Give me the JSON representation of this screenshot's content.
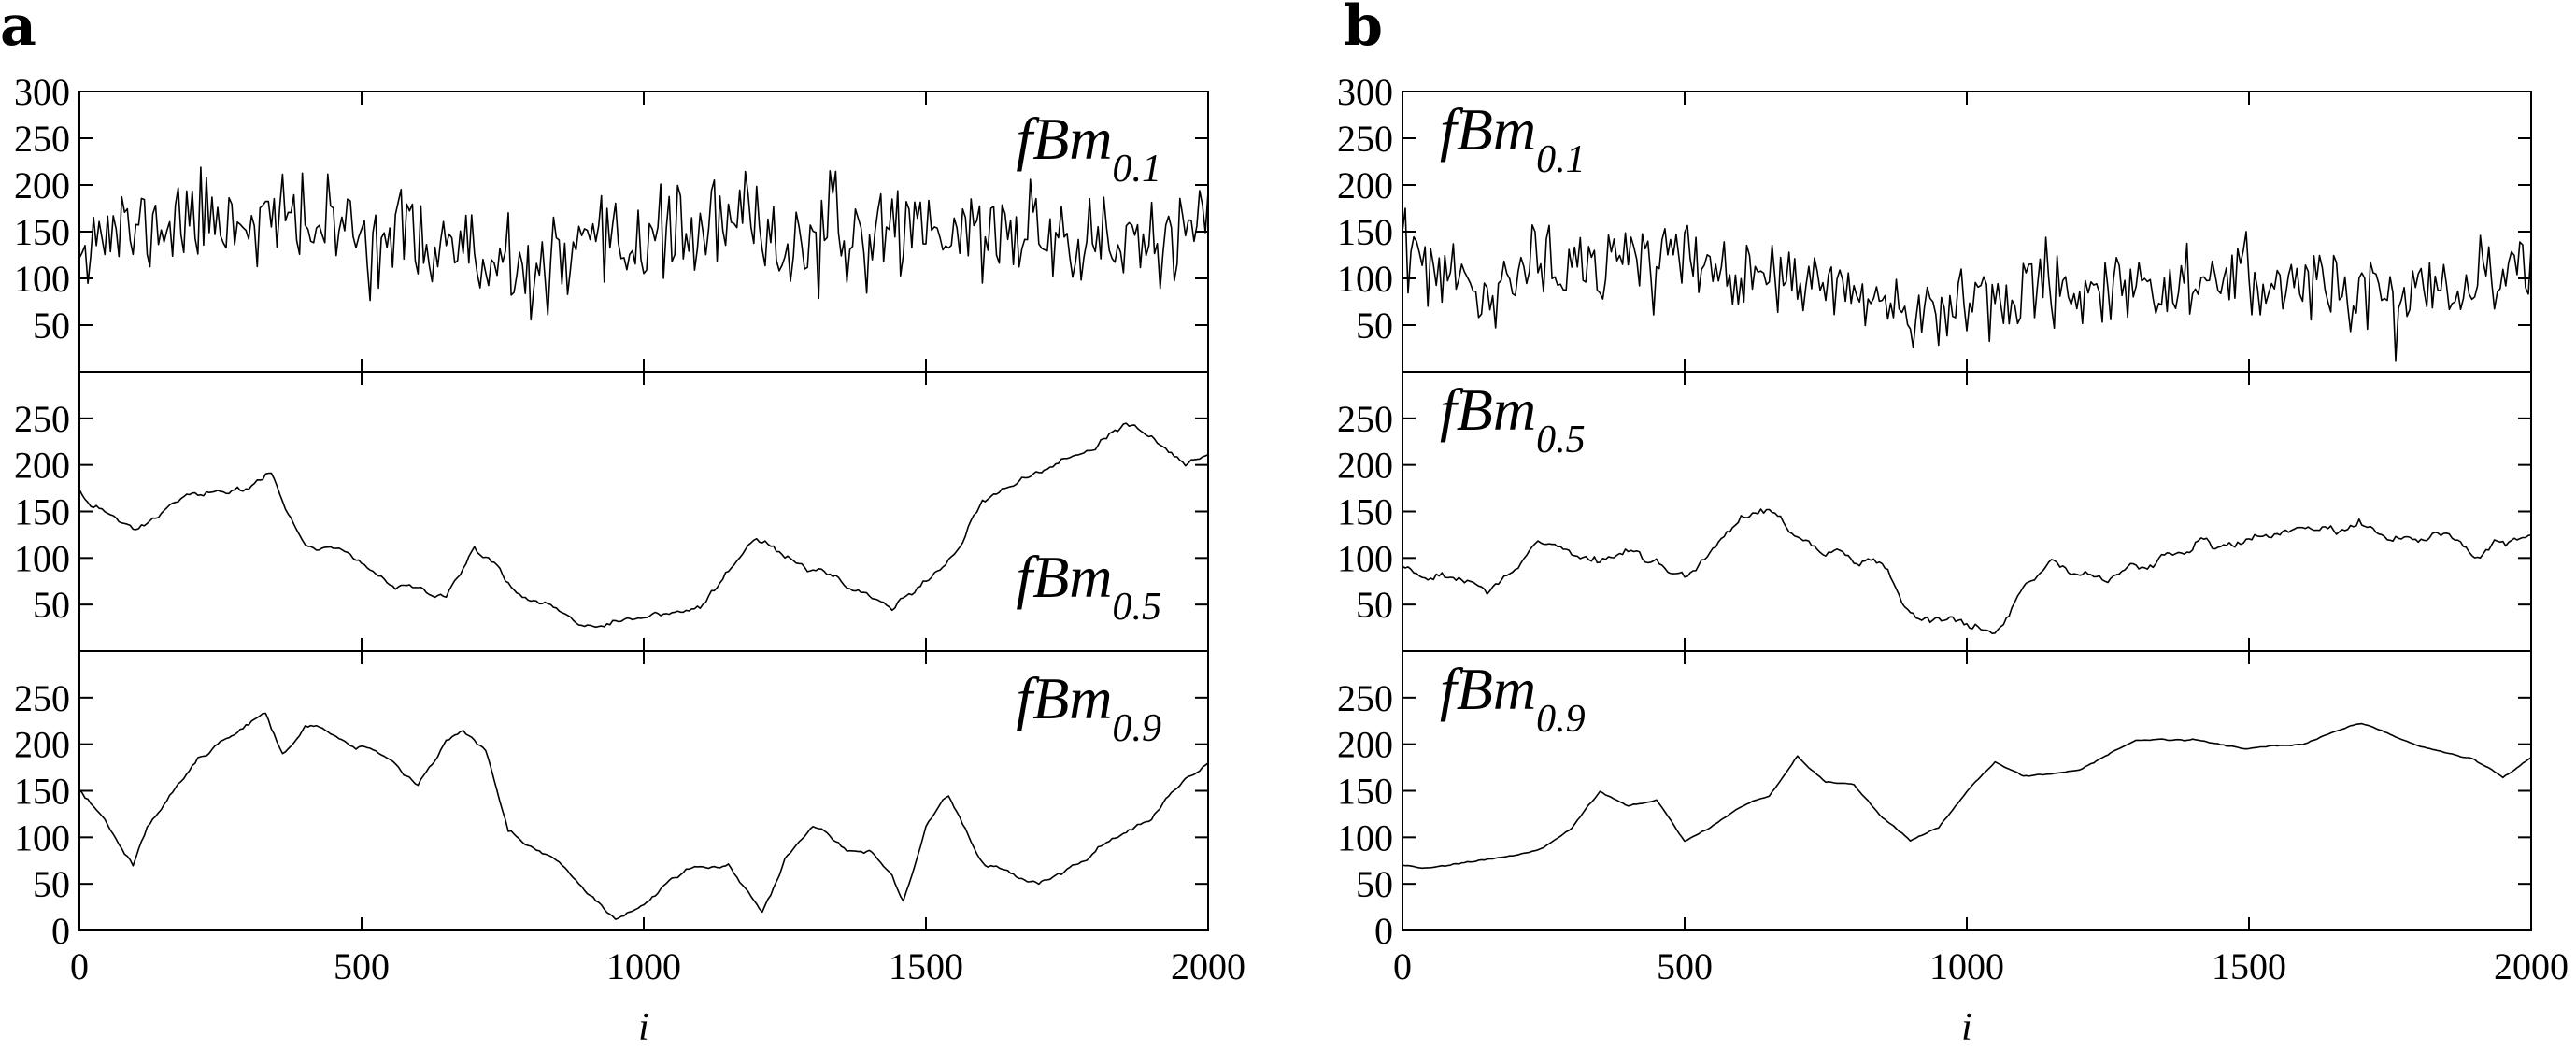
{
  "panels": [
    {
      "letter": "a",
      "xlabel": "i",
      "xlim": [
        0,
        2000
      ],
      "xticks": [
        0,
        500,
        1000,
        1500,
        2000
      ],
      "subplots": [
        {
          "label_main": "fBm",
          "label_sub": "0.1",
          "label_anchor": "top-right",
          "ylim": [
            0,
            300
          ],
          "yticks": [
            50,
            100,
            150,
            200,
            250,
            300
          ],
          "hurst": 0.1,
          "seed": 11,
          "sample_step": 5,
          "keypoints": [
            [
              0,
              150
            ],
            [
              100,
              150
            ],
            [
              200,
              165
            ],
            [
              300,
              165
            ],
            [
              400,
              158
            ],
            [
              500,
              150
            ],
            [
              600,
              140
            ],
            [
              680,
              135
            ],
            [
              720,
              100
            ],
            [
              800,
              105
            ],
            [
              900,
              120
            ],
            [
              1000,
              145
            ],
            [
              1100,
              150
            ],
            [
              1200,
              160
            ],
            [
              1260,
              130
            ],
            [
              1300,
              145
            ],
            [
              1400,
              140
            ],
            [
              1450,
              165
            ],
            [
              1550,
              150
            ],
            [
              1700,
              150
            ],
            [
              1800,
              135
            ],
            [
              1900,
              140
            ],
            [
              2000,
              140
            ]
          ],
          "noise_amplitude": 55,
          "y_clip": [
            20,
            250
          ]
        },
        {
          "label_main": "fBm",
          "label_sub": "0.5",
          "label_anchor": "bottom-right",
          "ylim": [
            0,
            300
          ],
          "yticks": [
            50,
            100,
            150,
            200,
            250
          ],
          "hurst": 0.5,
          "seed": 23,
          "sample_step": 5,
          "keypoints": [
            [
              0,
              170
            ],
            [
              20,
              150
            ],
            [
              100,
              130
            ],
            [
              200,
              165
            ],
            [
              250,
              170
            ],
            [
              300,
              170
            ],
            [
              340,
              190
            ],
            [
              360,
              160
            ],
            [
              400,
              110
            ],
            [
              500,
              95
            ],
            [
              550,
              70
            ],
            [
              650,
              65
            ],
            [
              700,
              110
            ],
            [
              750,
              85
            ],
            [
              800,
              55
            ],
            [
              900,
              35
            ],
            [
              1000,
              45
            ],
            [
              1100,
              45
            ],
            [
              1150,
              70
            ],
            [
              1200,
              115
            ],
            [
              1300,
              90
            ],
            [
              1400,
              50
            ],
            [
              1440,
              35
            ],
            [
              1500,
              80
            ],
            [
              1560,
              110
            ],
            [
              1600,
              160
            ],
            [
              1700,
              185
            ],
            [
              1800,
              210
            ],
            [
              1850,
              235
            ],
            [
              1900,
              225
            ],
            [
              1960,
              200
            ],
            [
              2000,
              210
            ]
          ],
          "noise_amplitude": 10,
          "y_clip": [
            5,
            250
          ]
        },
        {
          "label_main": "fBm",
          "label_sub": "0.9",
          "label_anchor": "top-right",
          "ylim": [
            0,
            300
          ],
          "yticks": [
            0,
            50,
            100,
            150,
            200,
            250
          ],
          "hurst": 0.9,
          "seed": 37,
          "sample_step": 5,
          "keypoints": [
            [
              0,
              150
            ],
            [
              50,
              115
            ],
            [
              95,
              75
            ],
            [
              120,
              120
            ],
            [
              200,
              180
            ],
            [
              250,
              205
            ],
            [
              300,
              225
            ],
            [
              330,
              240
            ],
            [
              360,
              200
            ],
            [
              400,
              230
            ],
            [
              450,
              215
            ],
            [
              550,
              185
            ],
            [
              600,
              160
            ],
            [
              650,
              210
            ],
            [
              680,
              225
            ],
            [
              720,
              195
            ],
            [
              760,
              115
            ],
            [
              850,
              80
            ],
            [
              900,
              45
            ],
            [
              950,
              20
            ],
            [
              1000,
              30
            ],
            [
              1050,
              60
            ],
            [
              1150,
              70
            ],
            [
              1210,
              15
            ],
            [
              1250,
              75
            ],
            [
              1300,
              115
            ],
            [
              1350,
              95
            ],
            [
              1400,
              85
            ],
            [
              1440,
              60
            ],
            [
              1460,
              30
            ],
            [
              1500,
              110
            ],
            [
              1540,
              150
            ],
            [
              1600,
              80
            ],
            [
              1700,
              50
            ],
            [
              1800,
              85
            ],
            [
              1900,
              120
            ],
            [
              1960,
              160
            ],
            [
              2000,
              180
            ]
          ],
          "noise_amplitude": 12,
          "y_clip": [
            0,
            245
          ]
        }
      ]
    },
    {
      "letter": "b",
      "xlabel": "i",
      "xlim": [
        0,
        2000
      ],
      "xticks": [
        0,
        500,
        1000,
        1500,
        2000
      ],
      "subplots": [
        {
          "label_main": "fBm",
          "label_sub": "0.1",
          "label_anchor": "top-left",
          "ylim": [
            0,
            300
          ],
          "yticks": [
            50,
            100,
            150,
            200,
            250,
            300
          ],
          "hurst": 0.1,
          "seed": 53,
          "sample_step": 5,
          "keypoints": [
            [
              0,
              130
            ],
            [
              80,
              100
            ],
            [
              150,
              70
            ],
            [
              200,
              110
            ],
            [
              300,
              115
            ],
            [
              450,
              120
            ],
            [
              550,
              110
            ],
            [
              650,
              100
            ],
            [
              800,
              85
            ],
            [
              900,
              60
            ],
            [
              1000,
              85
            ],
            [
              1100,
              90
            ],
            [
              1300,
              95
            ],
            [
              1400,
              90
            ],
            [
              1500,
              100
            ],
            [
              1600,
              95
            ],
            [
              1700,
              90
            ],
            [
              1800,
              75
            ],
            [
              1900,
              80
            ],
            [
              2000,
              120
            ]
          ],
          "noise_amplitude": 45,
          "y_clip": [
            0,
            175
          ]
        },
        {
          "label_main": "fBm",
          "label_sub": "0.5",
          "label_anchor": "top-left",
          "ylim": [
            0,
            300
          ],
          "yticks": [
            50,
            100,
            150,
            200,
            250
          ],
          "hurst": 0.5,
          "seed": 71,
          "sample_step": 5,
          "keypoints": [
            [
              0,
              90
            ],
            [
              100,
              80
            ],
            [
              150,
              65
            ],
            [
              250,
              110
            ],
            [
              350,
              95
            ],
            [
              450,
              105
            ],
            [
              500,
              80
            ],
            [
              550,
              100
            ],
            [
              600,
              145
            ],
            [
              650,
              155
            ],
            [
              700,
              130
            ],
            [
              800,
              90
            ],
            [
              850,
              80
            ],
            [
              900,
              40
            ],
            [
              950,
              45
            ],
            [
              1000,
              35
            ],
            [
              1050,
              20
            ],
            [
              1100,
              70
            ],
            [
              1150,
              90
            ],
            [
              1250,
              75
            ],
            [
              1300,
              90
            ],
            [
              1400,
              115
            ],
            [
              1500,
              125
            ],
            [
              1600,
              140
            ],
            [
              1700,
              150
            ],
            [
              1750,
              125
            ],
            [
              1850,
              130
            ],
            [
              1900,
              105
            ],
            [
              2000,
              125
            ]
          ],
          "noise_amplitude": 14,
          "y_clip": [
            0,
            190
          ]
        },
        {
          "label_main": "fBm",
          "label_sub": "0.9",
          "label_anchor": "top-left",
          "ylim": [
            0,
            300
          ],
          "yticks": [
            0,
            50,
            100,
            150,
            200,
            250
          ],
          "hurst": 0.9,
          "seed": 89,
          "sample_step": 5,
          "keypoints": [
            [
              0,
              70
            ],
            [
              50,
              65
            ],
            [
              100,
              70
            ],
            [
              200,
              80
            ],
            [
              250,
              90
            ],
            [
              300,
              110
            ],
            [
              350,
              150
            ],
            [
              400,
              135
            ],
            [
              450,
              140
            ],
            [
              500,
              95
            ],
            [
              550,
              110
            ],
            [
              600,
              130
            ],
            [
              650,
              140
            ],
            [
              700,
              185
            ],
            [
              750,
              160
            ],
            [
              800,
              155
            ],
            [
              850,
              120
            ],
            [
              900,
              95
            ],
            [
              950,
              110
            ],
            [
              1000,
              150
            ],
            [
              1050,
              180
            ],
            [
              1100,
              165
            ],
            [
              1200,
              175
            ],
            [
              1300,
              205
            ],
            [
              1400,
              205
            ],
            [
              1500,
              195
            ],
            [
              1600,
              200
            ],
            [
              1700,
              225
            ],
            [
              1800,
              200
            ],
            [
              1900,
              185
            ],
            [
              1950,
              165
            ],
            [
              2000,
              185
            ]
          ],
          "noise_amplitude": 4,
          "y_clip": [
            55,
            235
          ]
        }
      ]
    }
  ],
  "chart_data": [
    {
      "type": "line",
      "panel": "a",
      "xlabel": "i",
      "xlim": [
        0,
        2000
      ],
      "series": [
        {
          "name": "fBm0.1",
          "ylim": [
            0,
            300
          ],
          "mean_level": 145,
          "approx_range": [
            20,
            250
          ]
        },
        {
          "name": "fBm0.5",
          "ylim": [
            0,
            300
          ],
          "approx_range": [
            10,
            245
          ]
        },
        {
          "name": "fBm0.9",
          "ylim": [
            0,
            300
          ],
          "approx_range": [
            0,
            245
          ]
        }
      ]
    },
    {
      "type": "line",
      "panel": "b",
      "xlabel": "i",
      "xlim": [
        0,
        2000
      ],
      "series": [
        {
          "name": "fBm0.1",
          "ylim": [
            0,
            300
          ],
          "mean_level": 95,
          "approx_range": [
            0,
            175
          ]
        },
        {
          "name": "fBm0.5",
          "ylim": [
            0,
            300
          ],
          "approx_range": [
            0,
            190
          ]
        },
        {
          "name": "fBm0.9",
          "ylim": [
            0,
            300
          ],
          "approx_range": [
            55,
            230
          ]
        }
      ]
    }
  ]
}
